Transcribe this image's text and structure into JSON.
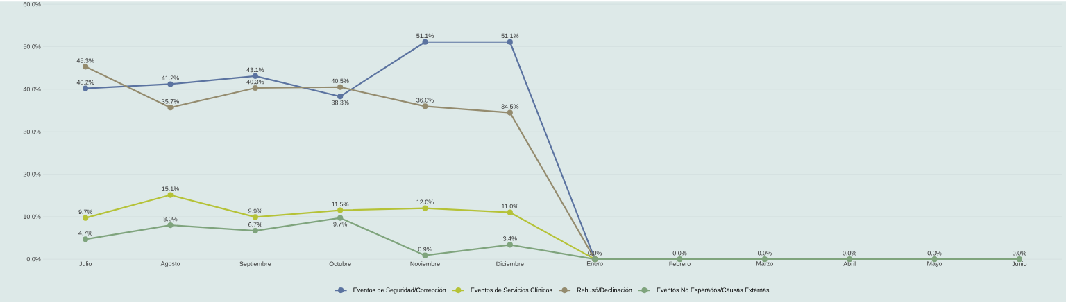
{
  "chart_data": {
    "type": "line",
    "categories": [
      "Julio",
      "Agosto",
      "Septiembre",
      "Octubre",
      "Noviembre",
      "Diciembre",
      "Enero",
      "Febrero",
      "Marzo",
      "Abril",
      "Mayo",
      "Junio"
    ],
    "series": [
      {
        "name": "Eventos de Seguridad/Corrección",
        "color": "#5b73a0",
        "values": [
          40.2,
          41.2,
          43.1,
          38.3,
          51.1,
          51.1,
          0.0,
          null,
          null,
          null,
          null,
          null
        ],
        "value_labels": [
          "40.2%",
          "41.2%",
          "43.1%",
          "38.3%",
          "51.1%",
          "51.1%",
          null,
          null,
          null,
          null,
          null,
          null
        ]
      },
      {
        "name": "Eventos de Servicios Clínicos",
        "color": "#b5c237",
        "values": [
          9.7,
          15.1,
          9.9,
          11.5,
          12.0,
          11.0,
          0.0,
          null,
          null,
          null,
          null,
          null
        ],
        "value_labels": [
          "9.7%",
          "15.1%",
          "9.9%",
          "11.5%",
          "12.0%",
          "11.0%",
          null,
          null,
          null,
          null,
          null,
          null
        ]
      },
      {
        "name": "Rehusó/Declinación",
        "color": "#948b6e",
        "values": [
          45.3,
          35.7,
          40.3,
          40.5,
          36.0,
          34.5,
          0.0,
          null,
          null,
          null,
          null,
          null
        ],
        "value_labels": [
          "45.3%",
          "35.7%",
          "40.3%",
          "40.5%",
          "36.0%",
          "34.5%",
          null,
          null,
          null,
          null,
          null,
          null
        ]
      },
      {
        "name": "Eventos No Esperados/Causas Externas",
        "color": "#7fa47d",
        "values": [
          4.7,
          8.0,
          6.7,
          9.7,
          0.9,
          3.4,
          0.0,
          0.0,
          0.0,
          0.0,
          0.0,
          0.0
        ],
        "value_labels": [
          "4.7%",
          "8.0%",
          "6.7%",
          "9.7%",
          "0.9%",
          "3.4%",
          "0.0%",
          "0.0%",
          "0.0%",
          "0.0%",
          "0.0%",
          "0.0%"
        ]
      }
    ],
    "ylim": [
      0,
      60
    ],
    "yticks": [
      {
        "value": 0,
        "label": "0.0%"
      },
      {
        "value": 10,
        "label": "10.0%"
      },
      {
        "value": 20,
        "label": "20.0%"
      },
      {
        "value": 30,
        "label": "30.0%"
      },
      {
        "value": 40,
        "label": "40.0%"
      },
      {
        "value": 50,
        "label": "50.0%"
      },
      {
        "value": 60,
        "label": "60.0%"
      }
    ],
    "grid": "y",
    "legend": "bottom",
    "marker": "circle",
    "line_style": "solid"
  }
}
